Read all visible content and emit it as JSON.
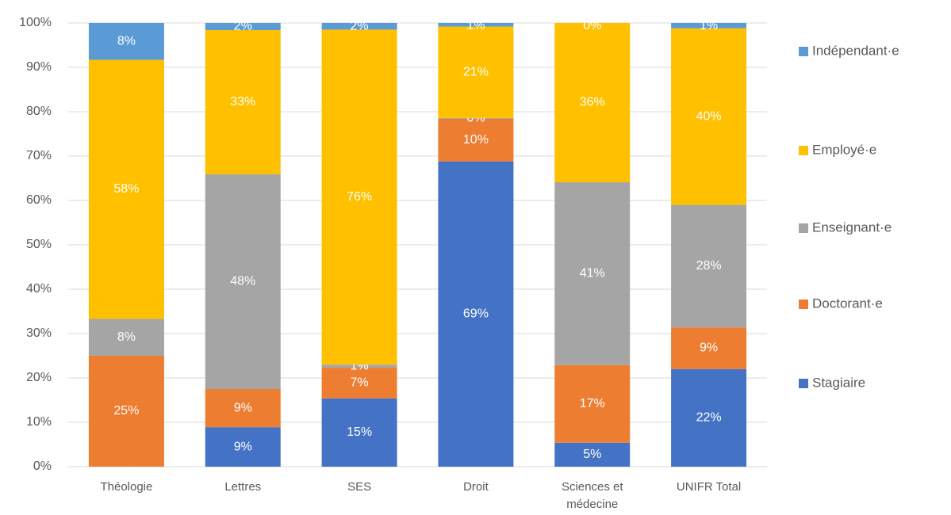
{
  "chart_data": {
    "type": "stacked_bar",
    "categories": [
      "Théologie",
      "Lettres",
      "SES",
      "Droit",
      "Sciences et médecine",
      "UNIFR Total"
    ],
    "series": [
      {
        "name": "Stagiaire",
        "color": "#4472c4",
        "values": [
          0,
          8.9,
          15.4,
          68.8,
          5.4,
          22.0
        ],
        "value_labels": [
          "0%",
          "9%",
          "15%",
          "69%",
          "5%",
          "22%"
        ]
      },
      {
        "name": "Doctorant·e",
        "color": "#ed7d31",
        "values": [
          25,
          8.6,
          6.9,
          9.6,
          17.5,
          9.4
        ],
        "value_labels": [
          "25%",
          "9%",
          "7%",
          "10%",
          "17%",
          "9%"
        ]
      },
      {
        "name": "Enseignant·e",
        "color": "#a5a5a5",
        "values": [
          8.3,
          48.4,
          0.7,
          0.2,
          41.2,
          27.6
        ],
        "value_labels": [
          "8%",
          "48%",
          "1%",
          "0%",
          "41%",
          "28%"
        ]
      },
      {
        "name": "Employé·e",
        "color": "#ffc000",
        "values": [
          58.4,
          32.5,
          75.5,
          20.6,
          35.9,
          39.8
        ],
        "value_labels": [
          "58%",
          "33%",
          "76%",
          "21%",
          "36%",
          "40%"
        ]
      },
      {
        "name": "Indépendant·e",
        "color": "#5b9bd5",
        "values": [
          8.3,
          1.6,
          1.5,
          0.8,
          0,
          1.2
        ],
        "value_labels": [
          "8%",
          "2%",
          "2%",
          "1%",
          "0%",
          "1%"
        ]
      }
    ],
    "ylim": [
      0,
      100
    ],
    "yticks": [
      {
        "value": 0,
        "label": "0%"
      },
      {
        "value": 10,
        "label": "10%"
      },
      {
        "value": 20,
        "label": "20%"
      },
      {
        "value": 30,
        "label": "30%"
      },
      {
        "value": 40,
        "label": "40%"
      },
      {
        "value": 50,
        "label": "50%"
      },
      {
        "value": 60,
        "label": "60%"
      },
      {
        "value": 70,
        "label": "70%"
      },
      {
        "value": 80,
        "label": "80%"
      },
      {
        "value": 90,
        "label": "90%"
      },
      {
        "value": 100,
        "label": "100%"
      }
    ],
    "grid": true,
    "legend": "right"
  }
}
